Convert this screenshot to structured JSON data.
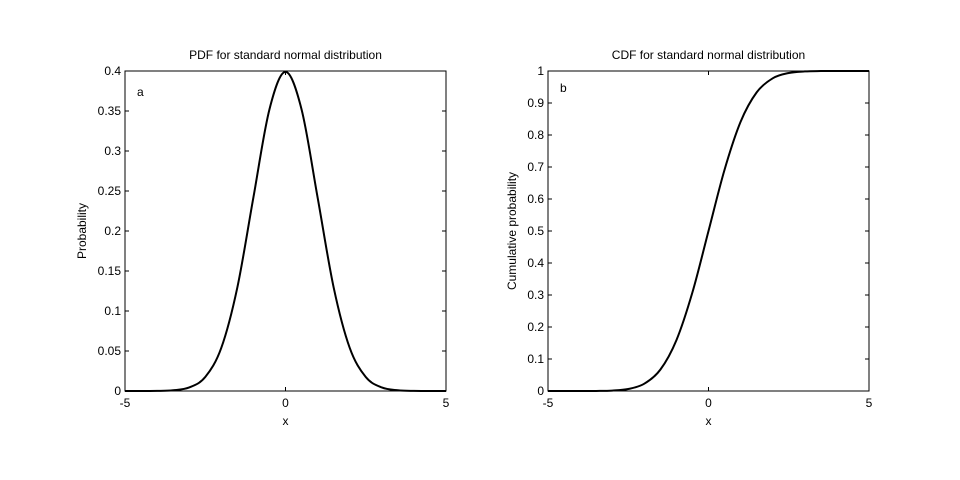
{
  "chart_data": [
    {
      "type": "line",
      "title": "PDF for standard normal distribution",
      "panel_letter": "a",
      "xlabel": "x",
      "ylabel": "Probability",
      "xlim": [
        -5,
        5
      ],
      "ylim": [
        0,
        0.4
      ],
      "xticks": [
        "-5",
        "0",
        "5"
      ],
      "yticks": [
        "0",
        "0.05",
        "0.1",
        "0.15",
        "0.2",
        "0.25",
        "0.3",
        "0.35",
        "0.4"
      ],
      "grid": false,
      "series": [
        {
          "x": [
            -5,
            -4.5,
            -4,
            -3.5,
            -3,
            -2.5,
            -2,
            -1.5,
            -1,
            -0.5,
            0,
            0.5,
            1,
            1.5,
            2,
            2.5,
            3,
            3.5,
            4,
            4.5,
            5
          ],
          "values": [
            0.0,
            0.0,
            0.0001,
            0.0009,
            0.0044,
            0.0175,
            0.054,
            0.1295,
            0.242,
            0.3521,
            0.3989,
            0.3521,
            0.242,
            0.1295,
            0.054,
            0.0175,
            0.0044,
            0.0009,
            0.0001,
            0.0,
            0.0
          ]
        }
      ]
    },
    {
      "type": "line",
      "title": "CDF for standard normal distribution",
      "panel_letter": "b",
      "xlabel": "x",
      "ylabel": "Cumulative probability",
      "xlim": [
        -5,
        5
      ],
      "ylim": [
        0,
        1
      ],
      "xticks": [
        "-5",
        "0",
        "5"
      ],
      "yticks": [
        "0",
        "0.1",
        "0.2",
        "0.3",
        "0.4",
        "0.5",
        "0.6",
        "0.7",
        "0.8",
        "0.9",
        "1"
      ],
      "grid": false,
      "series": [
        {
          "x": [
            -5,
            -4.5,
            -4,
            -3.5,
            -3,
            -2.5,
            -2,
            -1.5,
            -1,
            -0.5,
            0,
            0.5,
            1,
            1.5,
            2,
            2.5,
            3,
            3.5,
            4,
            4.5,
            5
          ],
          "values": [
            0.0,
            0.0,
            0.0,
            0.0002,
            0.0013,
            0.0062,
            0.0228,
            0.0668,
            0.1587,
            0.3085,
            0.5,
            0.6915,
            0.8413,
            0.9332,
            0.9772,
            0.9938,
            0.9987,
            0.9998,
            1.0,
            1.0,
            1.0
          ]
        }
      ]
    }
  ]
}
